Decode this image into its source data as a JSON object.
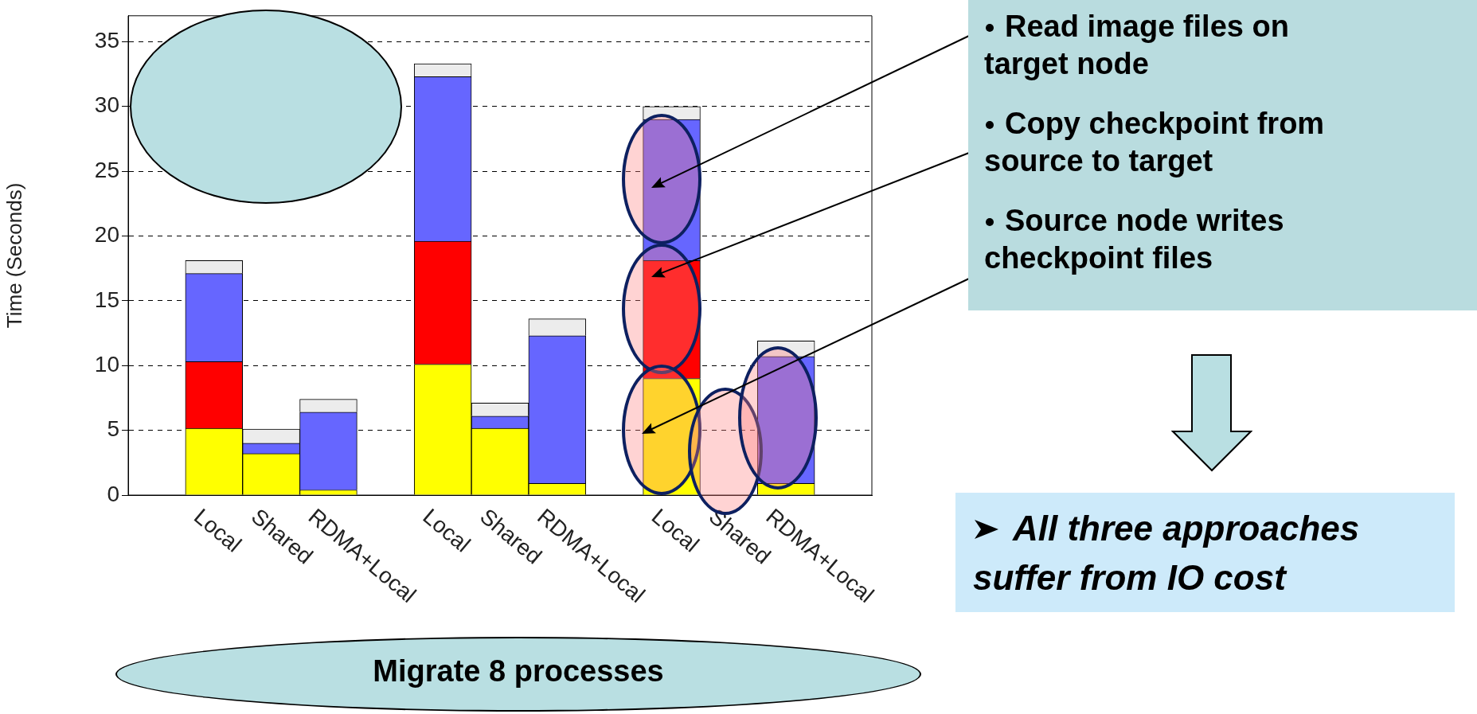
{
  "chart_data": {
    "type": "bar",
    "stacked": true,
    "ylabel": "Time (Seconds)",
    "xlabel": "Migrate 8 processes",
    "categories": [
      null,
      "Local",
      "Shared",
      "RDMA+Local",
      null,
      "Local",
      "Shared",
      "RDMA+Local",
      null,
      "Local",
      "Shared",
      "RDMA+Local",
      null
    ],
    "series": [
      {
        "color": "#ffff00",
        "values": [
          null,
          5.15,
          3.2,
          0.4,
          null,
          10.1,
          5.15,
          0.9,
          null,
          9.0,
          null,
          0.9,
          null
        ]
      },
      {
        "color": "#ff0000",
        "values": [
          null,
          5.15,
          0,
          0,
          null,
          9.5,
          0,
          0,
          null,
          9.1,
          null,
          0,
          null
        ]
      },
      {
        "color": "#6666ff",
        "values": [
          null,
          6.8,
          0.8,
          6.0,
          null,
          12.7,
          0.95,
          11.4,
          null,
          10.9,
          null,
          9.8,
          null
        ]
      },
      {
        "color": "#ececec",
        "values": [
          null,
          1.0,
          1.1,
          1.0,
          null,
          1.0,
          1.0,
          1.3,
          null,
          1.0,
          null,
          1.2,
          null
        ]
      }
    ],
    "ylim": [
      0,
      37
    ],
    "yticks": [
      0,
      5,
      10,
      15,
      20,
      25,
      30,
      35
    ],
    "grid": "y",
    "annotations": [
      "Read image files on target node",
      "Copy checkpoint from source to target",
      "Source node writes checkpoint files",
      "All three approaches suffer from IO cost"
    ]
  }
}
